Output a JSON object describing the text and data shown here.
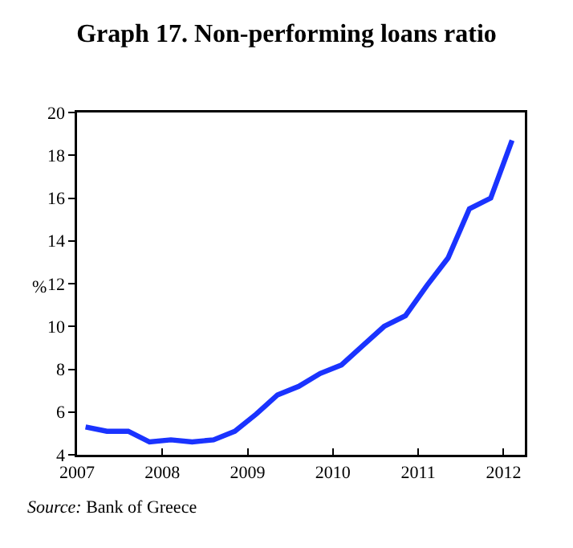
{
  "chart_data": {
    "type": "line",
    "title": "Graph 17. Non-performing loans ratio",
    "ylabel": "%",
    "annotations": [
      "Source: Bank of Greece"
    ],
    "x": [
      2007.1,
      2007.35,
      2007.6,
      2007.85,
      2008.1,
      2008.35,
      2008.6,
      2008.85,
      2009.1,
      2009.35,
      2009.6,
      2009.85,
      2010.1,
      2010.35,
      2010.6,
      2010.85,
      2011.1,
      2011.35,
      2011.6,
      2011.85,
      2012.1
    ],
    "series": [
      {
        "color": "#1a33ff",
        "values": [
          5.3,
          5.1,
          5.1,
          4.6,
          4.7,
          4.6,
          4.7,
          5.1,
          5.9,
          6.8,
          7.2,
          7.8,
          8.2,
          9.1,
          10.0,
          10.5,
          11.9,
          13.2,
          15.5,
          16.0,
          18.7
        ]
      }
    ],
    "xlim": [
      2007,
      2012.25
    ],
    "xticks": [
      2007,
      2008,
      2009,
      2010,
      2011,
      2012
    ],
    "ylim": [
      4,
      20
    ],
    "yticks": [
      4,
      6,
      8,
      10,
      12,
      14,
      16,
      18,
      20
    ],
    "grid": false
  }
}
